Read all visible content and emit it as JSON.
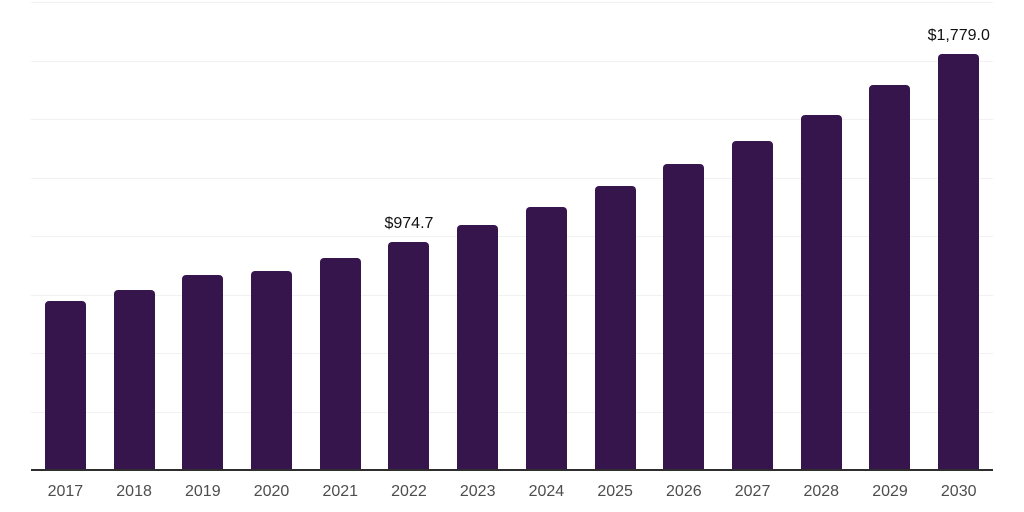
{
  "chart_data": {
    "type": "bar",
    "title": "",
    "xlabel": "",
    "ylabel": "",
    "categories": [
      "2017",
      "2018",
      "2019",
      "2020",
      "2021",
      "2022",
      "2023",
      "2024",
      "2025",
      "2026",
      "2027",
      "2028",
      "2029",
      "2030"
    ],
    "values": [
      722,
      768,
      833,
      851,
      908,
      974.7,
      1048,
      1122,
      1213,
      1308,
      1408,
      1519,
      1645,
      1779
    ],
    "value_labels": [
      "",
      "",
      "",
      "",
      "",
      "$974.7",
      "",
      "",
      "",
      "",
      "",
      "",
      "",
      "$1,779.0"
    ],
    "ylim": [
      0,
      2000
    ],
    "gridline_step": 250,
    "grid": true,
    "legend": "none",
    "colors": {
      "bar": "#36154d",
      "gridline": "#f1f1f1",
      "axis_line": "#2e2e2e",
      "tick_label": "#4d4d4d",
      "data_label": "#111111",
      "background": "#ffffff"
    }
  }
}
